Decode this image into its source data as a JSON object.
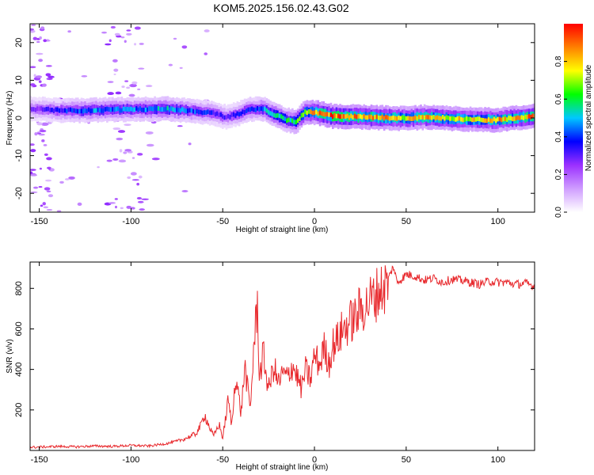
{
  "figure_title": "KOM5.2025.156.02.43.G02",
  "chart_data": [
    {
      "type": "heatmap",
      "title": "",
      "xlabel": "Height of straight line (km)",
      "ylabel": "Frequency (Hz)",
      "xlim": [
        -155,
        120
      ],
      "ylim": [
        -25,
        25
      ],
      "x_ticks": [
        -150,
        -100,
        -50,
        0,
        50,
        100
      ],
      "y_ticks": [
        -20,
        -10,
        0,
        10,
        20
      ],
      "colorbar": {
        "label": "Normalized spectral amplitude",
        "range": [
          0.0,
          1.0
        ],
        "ticks": [
          "0.0",
          "0.2",
          "0.4",
          "0.6",
          "0.8"
        ],
        "colors": [
          "#ffffff",
          "#cf9dff",
          "#9b30ff",
          "#0000ff",
          "#00c8ff",
          "#00ff00",
          "#ffff00",
          "#ff8000",
          "#ff0000"
        ]
      },
      "ridge": {
        "x": [
          -155,
          -140,
          -125,
          -110,
          -95,
          -80,
          -65,
          -55,
          -48,
          -42,
          -35,
          -28,
          -22,
          -15,
          -10,
          -5,
          0,
          10,
          20,
          30,
          40,
          50,
          60,
          70,
          80,
          90,
          100,
          110,
          120
        ],
        "freq": [
          2.5,
          2.0,
          2.0,
          2.2,
          2.3,
          2.4,
          1.8,
          1.3,
          0.2,
          1.0,
          2.3,
          2.4,
          1.0,
          -0.5,
          -1.0,
          1.5,
          1.5,
          0.5,
          0.3,
          0.2,
          0.0,
          -0.1,
          0.2,
          0.0,
          -0.3,
          -0.5,
          -0.5,
          0.0,
          0.5
        ],
        "amplitude": [
          0.25,
          0.35,
          0.45,
          0.45,
          0.45,
          0.5,
          0.4,
          0.35,
          0.3,
          0.35,
          0.4,
          0.45,
          0.55,
          0.55,
          0.6,
          0.7,
          0.85,
          0.9,
          0.85,
          0.85,
          0.8,
          0.75,
          0.8,
          0.8,
          0.75,
          0.75,
          0.8,
          0.8,
          0.85
        ]
      }
    },
    {
      "type": "line",
      "title": "",
      "xlabel": "Height of straight line (km)",
      "ylabel": "SNR (v/v)",
      "xlim": [
        -155,
        120
      ],
      "ylim": [
        0,
        930
      ],
      "x_ticks": [
        -150,
        -100,
        -50,
        0,
        50,
        100
      ],
      "y_ticks": [
        200,
        400,
        600,
        800
      ],
      "line_color": "#e8292d",
      "series": [
        {
          "x": [
            -155,
            -140,
            -130,
            -120,
            -110,
            -100,
            -90,
            -80,
            -75,
            -70,
            -65,
            -62,
            -60,
            -57,
            -55,
            -52,
            -50,
            -47,
            -45,
            -43,
            -40,
            -38,
            -35,
            -33,
            -31,
            -30,
            -28,
            -25,
            -22,
            -20,
            -17,
            -15,
            -12,
            -10,
            -7,
            -5,
            -2,
            0,
            3,
            5,
            8,
            10,
            13,
            15,
            18,
            20,
            23,
            25,
            28,
            30,
            33,
            35,
            38,
            40,
            43,
            45,
            48,
            50,
            55,
            60,
            65,
            70,
            75,
            80,
            85,
            90,
            95,
            100,
            105,
            110,
            115,
            120
          ],
          "values": [
            15,
            20,
            18,
            22,
            20,
            25,
            22,
            35,
            45,
            60,
            80,
            120,
            180,
            110,
            70,
            130,
            60,
            250,
            120,
            380,
            180,
            420,
            200,
            520,
            730,
            350,
            480,
            300,
            420,
            330,
            380,
            360,
            420,
            380,
            300,
            400,
            350,
            470,
            420,
            510,
            430,
            520,
            550,
            590,
            620,
            640,
            660,
            700,
            710,
            740,
            760,
            790,
            800,
            840,
            910,
            830,
            850,
            870,
            860,
            840,
            850,
            830,
            845,
            840,
            830,
            820,
            835,
            830,
            830,
            820,
            825,
            810
          ]
        }
      ]
    }
  ]
}
